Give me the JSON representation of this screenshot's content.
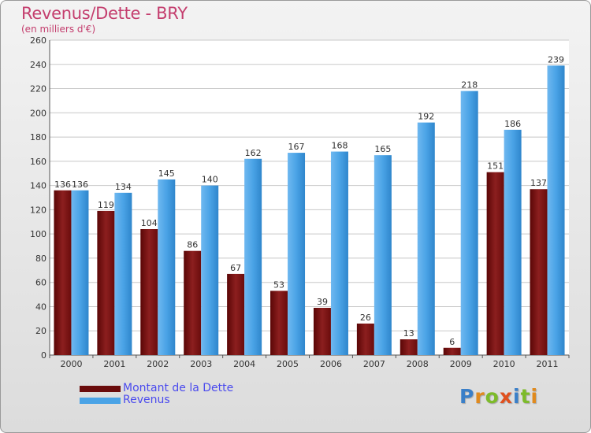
{
  "chart_data": {
    "type": "bar",
    "title": "Revenus/Dette - BRY",
    "subtitle": "(en milliers d'€)",
    "categories": [
      "2000",
      "2001",
      "2002",
      "2003",
      "2004",
      "2005",
      "2006",
      "2007",
      "2008",
      "2009",
      "2010",
      "2011"
    ],
    "series": [
      {
        "name": "Montant de la Dette",
        "values": [
          136,
          119,
          104,
          86,
          67,
          53,
          39,
          26,
          13,
          6,
          151,
          137
        ],
        "color": "#7a1010"
      },
      {
        "name": "Revenus",
        "values": [
          136,
          134,
          145,
          140,
          162,
          167,
          168,
          165,
          192,
          218,
          186,
          239
        ],
        "color": "#4aa3e6"
      }
    ],
    "ylim": [
      0,
      260
    ],
    "yticks": [
      0,
      20,
      40,
      60,
      80,
      100,
      120,
      140,
      160,
      180,
      200,
      220,
      240,
      260
    ],
    "grid": true,
    "legend_position": "bottom-left"
  },
  "logo": {
    "letters": [
      "P",
      "r",
      "o",
      "x",
      "i",
      "t",
      "i"
    ],
    "colors": [
      "#3a7fc8",
      "#e08a1e",
      "#7dbb2a",
      "#e0501e",
      "#3a7fc8",
      "#7dbb2a",
      "#e08a1e"
    ]
  }
}
